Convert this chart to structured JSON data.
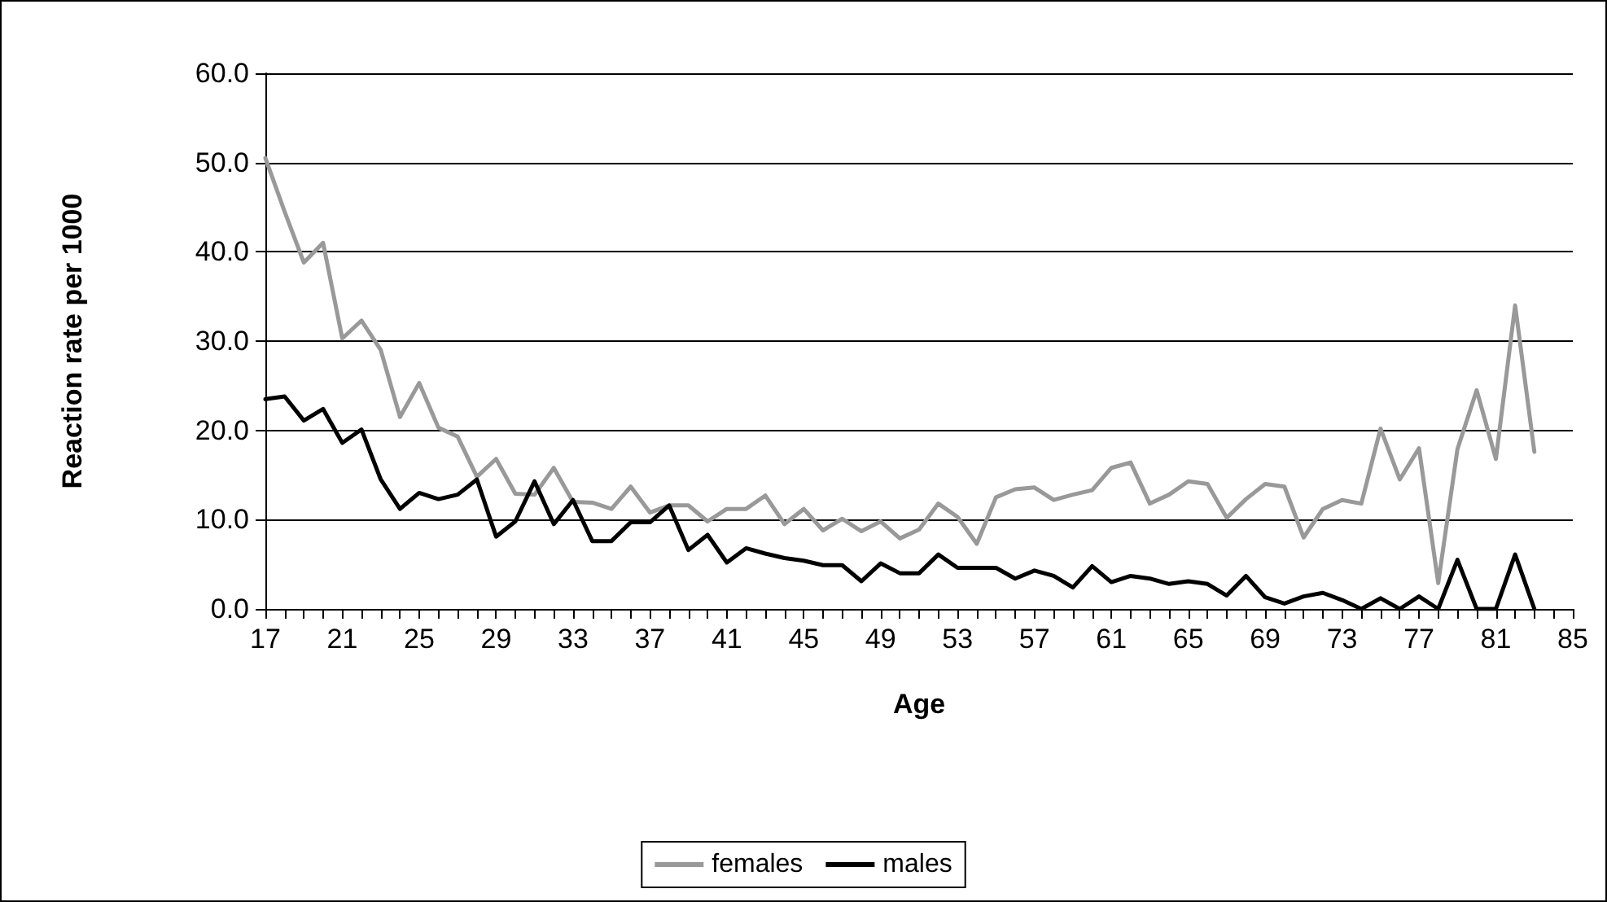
{
  "chart_data": {
    "type": "line",
    "xlabel": "Age",
    "ylabel": "Reaction rate per 1000",
    "categories": [
      "17",
      null,
      null,
      null,
      "21",
      null,
      null,
      null,
      "25",
      null,
      null,
      null,
      "29",
      null,
      null,
      null,
      "33",
      null,
      null,
      null,
      "37",
      null,
      null,
      null,
      "41",
      null,
      null,
      null,
      "45",
      null,
      null,
      null,
      "49",
      null,
      null,
      null,
      "53",
      null,
      null,
      null,
      "57",
      null,
      null,
      null,
      "61",
      null,
      null,
      null,
      "65",
      null,
      null,
      null,
      "69",
      null,
      null,
      null,
      "73",
      null,
      null,
      null,
      "77",
      null,
      null,
      null,
      "81",
      null,
      null,
      null,
      "85"
    ],
    "series": [
      {
        "name": "females",
        "color": "#999999",
        "values": [
          50.5,
          44.5,
          38.8,
          41,
          30.3,
          32.3,
          29,
          21.5,
          25.3,
          20.3,
          19.3,
          14.8,
          16.8,
          12.9,
          12.8,
          15.8,
          12,
          11.9,
          11.2,
          13.7,
          10.8,
          11.6,
          11.6,
          9.8,
          11.2,
          11.2,
          12.7,
          9.5,
          11.2,
          8.8,
          10.1,
          8.7,
          9.8,
          7.9,
          8.9,
          11.8,
          10.3,
          7.3,
          12.5,
          13.4,
          13.6,
          12.2,
          12.8,
          13.3,
          15.8,
          16.4,
          11.8,
          12.8,
          14.3,
          14,
          10.2,
          12.3,
          14,
          13.7,
          8,
          11.2,
          12.2,
          11.8,
          20.2,
          14.5,
          18,
          2.9,
          17.9,
          24.5,
          16.8,
          34,
          17.6,
          null,
          null
        ]
      },
      {
        "name": "males",
        "color": "#000000",
        "values": [
          23.5,
          23.8,
          21.1,
          22.4,
          18.6,
          20.1,
          14.5,
          11.2,
          13,
          12.3,
          12.8,
          14.5,
          8.1,
          9.8,
          14.3,
          9.5,
          12.2,
          7.6,
          7.6,
          9.7,
          9.7,
          11.6,
          6.6,
          8.3,
          5.2,
          6.8,
          6.2,
          5.7,
          5.4,
          4.9,
          4.9,
          3.1,
          5.1,
          4,
          4,
          6.1,
          4.6,
          4.6,
          4.6,
          3.4,
          4.3,
          3.7,
          2.4,
          4.8,
          3,
          3.7,
          3.4,
          2.8,
          3.1,
          2.8,
          1.5,
          3.7,
          1.3,
          0.6,
          1.4,
          1.8,
          1,
          0,
          1.2,
          0,
          1.4,
          0,
          5.5,
          0,
          0,
          6.1,
          0,
          null,
          null
        ]
      }
    ],
    "ylim": [
      0,
      60
    ],
    "yticks": [
      {
        "value": 0,
        "label": "0.0"
      },
      {
        "value": 10,
        "label": "10.0"
      },
      {
        "value": 20,
        "label": "20.0"
      },
      {
        "value": 30,
        "label": "30.0"
      },
      {
        "value": 40,
        "label": "40.0"
      },
      {
        "value": 50,
        "label": "50.0"
      },
      {
        "value": 60,
        "label": "60.0"
      }
    ],
    "grid": "y",
    "legend": "bottom",
    "marker": "none",
    "line_style": "solid"
  }
}
